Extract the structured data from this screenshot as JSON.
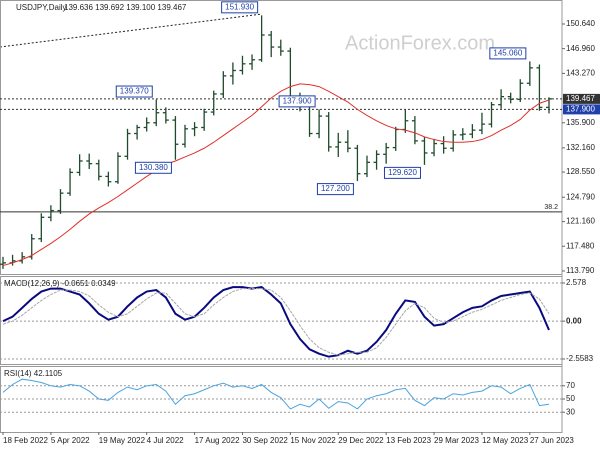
{
  "chart_data": [
    {
      "type": "ohlc",
      "title": "USDJPY,Daily",
      "subtitle": "139.636 139.692 139.100 139.467",
      "watermark": "ActionForex.com",
      "categories": [
        "18 Feb 2022",
        null,
        null,
        null,
        null,
        "5 Apr 2022",
        null,
        null,
        null,
        null,
        "19 May 2022",
        null,
        null,
        null,
        null,
        "4 Jul 2022",
        null,
        null,
        null,
        null,
        "17 Aug 2022",
        null,
        null,
        null,
        null,
        "30 Sep 2022",
        null,
        null,
        null,
        null,
        "15 Nov 2022",
        null,
        null,
        null,
        null,
        "29 Dec 2022",
        null,
        null,
        null,
        null,
        "13 Feb 2023",
        null,
        null,
        null,
        null,
        "29 Mar 2023",
        null,
        null,
        null,
        null,
        "12 May 2023",
        null,
        null,
        null,
        null,
        "27 Jun 2023",
        null,
        null
      ],
      "open": [
        114.8,
        115.0,
        115.3,
        115.9,
        118.6,
        121.8,
        122.8,
        125.4,
        128.5,
        130.2,
        129.8,
        127.9,
        127.1,
        130.9,
        134.3,
        135.2,
        135.9,
        137.4,
        136.3,
        132.7,
        135.0,
        135.2,
        137.5,
        140.2,
        142.9,
        143.7,
        144.7,
        145.3,
        149.0,
        147.2,
        146.6,
        139.4,
        138.6,
        134.3,
        136.9,
        132.3,
        133.0,
        132.1,
        128.3,
        130.0,
        131.2,
        132.2,
        134.9,
        136.2,
        133.2,
        131.4,
        132.8,
        132.1,
        134.1,
        134.2,
        134.8,
        135.7,
        138.6,
        139.8,
        139.4,
        141.8,
        144.1,
        138.2
      ],
      "high": [
        115.9,
        116.2,
        116.6,
        119.3,
        122.4,
        123.6,
        126.0,
        129.1,
        131.2,
        131.3,
        130.4,
        128.6,
        131.5,
        135.0,
        135.6,
        136.7,
        139.37,
        138.2,
        136.9,
        135.6,
        136.0,
        138.0,
        140.7,
        143.6,
        144.9,
        145.9,
        146.1,
        151.93,
        149.6,
        148.3,
        147.1,
        140.4,
        139.1,
        137.9,
        137.5,
        134.4,
        134.8,
        132.6,
        131.0,
        131.8,
        132.9,
        135.3,
        137.9,
        136.9,
        133.8,
        133.5,
        133.9,
        134.8,
        135.1,
        135.7,
        137.4,
        139.0,
        140.9,
        140.4,
        142.4,
        145.06,
        144.6,
        139.69
      ],
      "low": [
        114.1,
        114.6,
        114.9,
        115.5,
        118.1,
        121.2,
        122.3,
        125.0,
        128.0,
        129.0,
        127.3,
        126.4,
        126.8,
        130.4,
        133.4,
        134.6,
        135.4,
        135.8,
        130.38,
        132.2,
        133.9,
        134.7,
        137.0,
        139.6,
        141.6,
        143.1,
        143.8,
        145.0,
        145.7,
        145.9,
        138.8,
        137.6,
        133.8,
        133.6,
        131.6,
        130.8,
        131.5,
        127.2,
        127.8,
        128.9,
        129.8,
        131.7,
        134.4,
        132.7,
        129.62,
        130.9,
        131.3,
        131.6,
        133.3,
        133.6,
        134.2,
        135.2,
        138.0,
        138.8,
        139.0,
        141.4,
        137.7,
        137.3
      ],
      "close": [
        115.0,
        115.3,
        115.9,
        118.6,
        121.8,
        122.8,
        125.4,
        128.5,
        130.2,
        129.8,
        127.9,
        127.1,
        130.9,
        134.3,
        135.2,
        135.9,
        137.4,
        136.3,
        132.7,
        135.0,
        135.2,
        137.5,
        140.2,
        142.9,
        143.7,
        144.7,
        145.3,
        149.0,
        147.2,
        146.6,
        139.4,
        138.6,
        134.3,
        136.9,
        132.3,
        133.0,
        132.1,
        128.3,
        130.0,
        131.2,
        132.2,
        134.9,
        136.2,
        133.2,
        131.4,
        132.8,
        132.1,
        134.1,
        134.2,
        134.8,
        135.7,
        138.6,
        139.8,
        139.4,
        141.8,
        144.1,
        138.2,
        139.467
      ],
      "color": "#1f4a2c",
      "series": [
        {
          "name": null,
          "color": "#e0302a",
          "values": [
            114.6,
            115.0,
            115.5,
            116.1,
            117.0,
            117.9,
            118.9,
            120.0,
            121.2,
            122.3,
            123.2,
            124.0,
            124.9,
            125.9,
            126.9,
            127.9,
            128.8,
            129.7,
            130.2,
            130.8,
            131.4,
            132.1,
            133.0,
            134.0,
            135.0,
            136.0,
            137.0,
            138.3,
            139.6,
            140.6,
            141.3,
            141.7,
            141.6,
            141.3,
            140.6,
            139.8,
            139.0,
            137.9,
            137.0,
            136.2,
            135.5,
            135.0,
            134.8,
            134.4,
            133.8,
            133.4,
            133.1,
            133.0,
            133.0,
            133.1,
            133.4,
            134.0,
            134.8,
            135.5,
            136.4,
            137.8,
            138.8,
            139.3
          ]
        }
      ],
      "annotations": [
        {
          "value": 151.93,
          "label": "151.930"
        },
        {
          "value": 139.37,
          "label": "139.370"
        },
        {
          "value": 130.38,
          "label": "130.380"
        },
        {
          "value": 127.2,
          "label": "127.200"
        },
        {
          "value": 137.9,
          "label": "137.900"
        },
        {
          "value": 129.62,
          "label": "129.620"
        },
        {
          "value": 145.06,
          "label": "145.060"
        }
      ],
      "hlines": [
        {
          "value": 139.467,
          "label": "139.467",
          "color": "#333333"
        },
        {
          "value": 137.9,
          "label": "137.900",
          "color": "#1f3faa"
        }
      ],
      "fib_level": {
        "price": 122.6,
        "label": "38.2"
      },
      "ylim": [
        113.34,
        154.22
      ],
      "yticks": [
        {
          "value": 150.64,
          "label": "150.640"
        },
        {
          "value": 146.96,
          "label": "146.960"
        },
        {
          "value": 143.27,
          "label": "143.270"
        },
        {
          "value": 135.9,
          "label": "135.900"
        },
        {
          "value": 132.16,
          "label": "132.160"
        },
        {
          "value": 128.55,
          "label": "128.550"
        },
        {
          "value": 124.79,
          "label": "124.790"
        },
        {
          "value": 121.16,
          "label": "121.160"
        },
        {
          "value": 117.48,
          "label": "117.480"
        },
        {
          "value": 113.79,
          "label": "113.790"
        }
      ]
    },
    {
      "type": "line",
      "title": "MACD(12,26,9) -0.0651 0.0349",
      "series": [
        {
          "name": null,
          "color": "#0a0a80",
          "values": [
            0.0,
            0.3,
            0.9,
            1.5,
            2.0,
            2.2,
            2.2,
            2.0,
            1.8,
            1.2,
            0.5,
            0.1,
            0.3,
            1.0,
            1.6,
            2.0,
            2.1,
            1.6,
            0.5,
            0.1,
            0.3,
            0.9,
            1.6,
            2.1,
            2.3,
            2.3,
            2.2,
            2.3,
            1.8,
            1.2,
            -0.2,
            -1.2,
            -1.9,
            -2.2,
            -2.4,
            -2.3,
            -2.0,
            -2.2,
            -2.0,
            -1.4,
            -0.6,
            0.5,
            1.4,
            1.3,
            0.3,
            -0.3,
            -0.2,
            0.2,
            0.6,
            0.9,
            1.0,
            1.4,
            1.7,
            1.8,
            1.9,
            2.0,
            0.9,
            -0.6
          ]
        },
        {
          "name": null,
          "color": "#a8a8a8",
          "values": [
            -0.2,
            0.0,
            0.4,
            0.9,
            1.4,
            1.8,
            2.1,
            2.1,
            2.0,
            1.7,
            1.1,
            0.6,
            0.3,
            0.5,
            1.0,
            1.5,
            1.9,
            1.9,
            1.2,
            0.5,
            0.3,
            0.5,
            1.1,
            1.6,
            2.0,
            2.2,
            2.2,
            2.2,
            2.1,
            1.6,
            0.7,
            -0.3,
            -1.2,
            -1.8,
            -2.1,
            -2.3,
            -2.2,
            -2.1,
            -2.1,
            -1.8,
            -1.1,
            -0.2,
            0.7,
            1.2,
            0.9,
            0.2,
            -0.1,
            0.0,
            0.3,
            0.6,
            0.8,
            1.1,
            1.4,
            1.6,
            1.8,
            1.9,
            1.5,
            0.5
          ]
        }
      ],
      "ylim": [
        -2.896,
        3.051
      ],
      "yticks": [
        {
          "value": 2.578,
          "label": "2.578"
        },
        {
          "value": 0,
          "label": "0.00"
        },
        -2.5583
      ]
    },
    {
      "type": "line",
      "title": "RSI(14) 42.1105",
      "series": [
        {
          "name": null,
          "color": "#4aa3e0",
          "values": [
            60,
            72,
            80,
            78,
            75,
            70,
            68,
            72,
            70,
            62,
            50,
            48,
            60,
            68,
            64,
            70,
            72,
            62,
            42,
            55,
            58,
            64,
            70,
            74,
            68,
            70,
            66,
            72,
            60,
            52,
            35,
            42,
            38,
            50,
            36,
            46,
            44,
            35,
            50,
            55,
            58,
            64,
            66,
            48,
            40,
            52,
            50,
            58,
            56,
            60,
            62,
            70,
            68,
            58,
            66,
            72,
            40,
            42.1105
          ]
        }
      ],
      "ylim": [
        0,
        100
      ],
      "yticks": [
        70,
        50,
        30
      ]
    }
  ]
}
